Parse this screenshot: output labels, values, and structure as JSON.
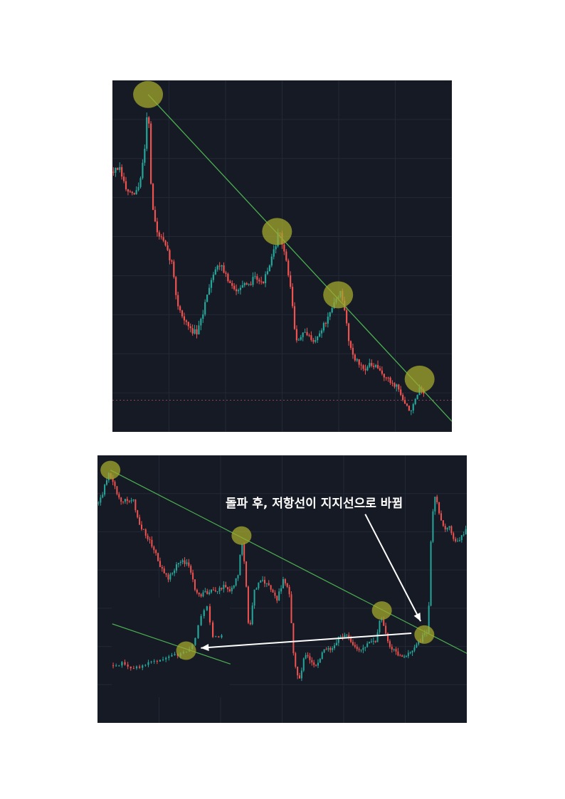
{
  "colors": {
    "background": "#161a25",
    "grid": "#232836",
    "up_candle": "#26a69a",
    "down_candle": "#ef5350",
    "trendline": "#4caf50",
    "touch_marker": "#a3a82e",
    "arrow": "#ffffff",
    "support_dotted": "#8a4455"
  },
  "annotation": {
    "text": "돌파 후, 저항선이 지지선으로 바뀜"
  },
  "chart_data": [
    {
      "type": "candlestick",
      "title": "",
      "xlabel": "",
      "ylabel": "",
      "grid": true,
      "ylim": [
        0,
        100
      ],
      "xlim": [
        0,
        100
      ],
      "trendlines": [
        {
          "from": [
            10.5,
            96.0
          ],
          "to": [
            100,
            3.0
          ]
        }
      ],
      "touch_points": [
        [
          10.5,
          96.0
        ],
        [
          48.5,
          57.0
        ],
        [
          66.5,
          39.0
        ],
        [
          90.5,
          15.0
        ]
      ],
      "price_path": [
        [
          0,
          74
        ],
        [
          2,
          75
        ],
        [
          4,
          69
        ],
        [
          6,
          67
        ],
        [
          8,
          70
        ],
        [
          9.5,
          81
        ],
        [
          10.5,
          95
        ],
        [
          11.5,
          66
        ],
        [
          13,
          57
        ],
        [
          15,
          54
        ],
        [
          17.5,
          48
        ],
        [
          19,
          37
        ],
        [
          21,
          32
        ],
        [
          23,
          29
        ],
        [
          25,
          28
        ],
        [
          26.5,
          33
        ],
        [
          28,
          40
        ],
        [
          30,
          46
        ],
        [
          32,
          48
        ],
        [
          34,
          43
        ],
        [
          36,
          40
        ],
        [
          38,
          42
        ],
        [
          40,
          41
        ],
        [
          42,
          45
        ],
        [
          44,
          42
        ],
        [
          46,
          46
        ],
        [
          48,
          53
        ],
        [
          49,
          57
        ],
        [
          50.5,
          52
        ],
        [
          52,
          44
        ],
        [
          53,
          37
        ],
        [
          54,
          25
        ],
        [
          56,
          28
        ],
        [
          58,
          27
        ],
        [
          60,
          26
        ],
        [
          62,
          30
        ],
        [
          64,
          33
        ],
        [
          65.5,
          37
        ],
        [
          67,
          40
        ],
        [
          68.5,
          34
        ],
        [
          70,
          24
        ],
        [
          72,
          20
        ],
        [
          74,
          18
        ],
        [
          76,
          19
        ],
        [
          78,
          18
        ],
        [
          80,
          16
        ],
        [
          82,
          14
        ],
        [
          84,
          13
        ],
        [
          86,
          8
        ],
        [
          87.5,
          6
        ],
        [
          89,
          8
        ],
        [
          90.5,
          12
        ],
        [
          92,
          10
        ]
      ],
      "support_level": 9
    },
    {
      "type": "candlestick",
      "title": "",
      "xlabel": "",
      "ylabel": "",
      "grid": true,
      "ylim": [
        0,
        100
      ],
      "xlim": [
        0,
        100
      ],
      "trendlines": [
        {
          "from": [
            3.5,
            94.5
          ],
          "to": [
            100,
            26.0
          ]
        },
        {
          "from": [
            4,
            37.0
          ],
          "to": [
            36,
            22.0
          ]
        }
      ],
      "touch_points": [
        [
          3.5,
          94.5
        ],
        [
          39,
          70.0
        ],
        [
          77,
          42.0
        ],
        [
          88.5,
          33.0
        ],
        [
          24,
          27.0
        ]
      ],
      "arrows": [
        {
          "from": [
            72.5,
            78.0
          ],
          "to": [
            87.5,
            38.0
          ]
        },
        {
          "from": [
            85,
            33.5
          ],
          "to": [
            28,
            28.0
          ]
        }
      ],
      "price_path": [
        [
          0,
          82
        ],
        [
          1.5,
          86
        ],
        [
          3,
          94
        ],
        [
          4.5,
          89
        ],
        [
          6,
          83
        ],
        [
          8,
          83
        ],
        [
          9.5,
          84
        ],
        [
          11,
          76
        ],
        [
          13,
          70
        ],
        [
          15,
          66
        ],
        [
          17,
          58
        ],
        [
          19,
          54
        ],
        [
          21,
          58
        ],
        [
          23,
          61
        ],
        [
          25,
          58
        ],
        [
          26.5,
          49
        ],
        [
          28,
          48
        ],
        [
          30,
          49
        ],
        [
          32,
          49
        ],
        [
          34,
          51
        ],
        [
          36,
          49
        ],
        [
          38,
          55
        ],
        [
          39,
          69
        ],
        [
          40,
          58
        ],
        [
          41,
          33
        ],
        [
          42.5,
          50
        ],
        [
          44.5,
          53
        ],
        [
          46.5,
          51
        ],
        [
          48.5,
          46
        ],
        [
          50.5,
          54
        ],
        [
          52,
          48
        ],
        [
          53,
          26
        ],
        [
          54.5,
          15
        ],
        [
          56,
          25
        ],
        [
          57.5,
          24
        ],
        [
          59.5,
          21
        ],
        [
          61.5,
          28
        ],
        [
          63.5,
          28
        ],
        [
          65.5,
          32
        ],
        [
          67.5,
          33
        ],
        [
          69.5,
          28
        ],
        [
          71.5,
          28
        ],
        [
          73.5,
          30
        ],
        [
          75.5,
          31
        ],
        [
          76.5,
          40
        ],
        [
          77.5,
          36
        ],
        [
          79,
          29
        ],
        [
          81,
          26
        ],
        [
          83,
          25
        ],
        [
          85,
          26
        ],
        [
          86.5,
          29
        ],
        [
          88,
          32
        ],
        [
          89.5,
          34
        ],
        [
          90.5,
          77
        ],
        [
          91.5,
          85
        ],
        [
          92.5,
          78
        ],
        [
          94,
          73
        ],
        [
          95.5,
          73
        ],
        [
          97,
          67
        ],
        [
          98.5,
          69
        ],
        [
          100,
          74
        ]
      ],
      "inset_price_path": [
        [
          0,
          16
        ],
        [
          3,
          17
        ],
        [
          6,
          14
        ],
        [
          9,
          16
        ],
        [
          12,
          18
        ],
        [
          15,
          19
        ],
        [
          18,
          21
        ],
        [
          21,
          22
        ],
        [
          24,
          26
        ],
        [
          26,
          38
        ],
        [
          28,
          47
        ],
        [
          30,
          30
        ],
        [
          33,
          31
        ]
      ]
    }
  ]
}
